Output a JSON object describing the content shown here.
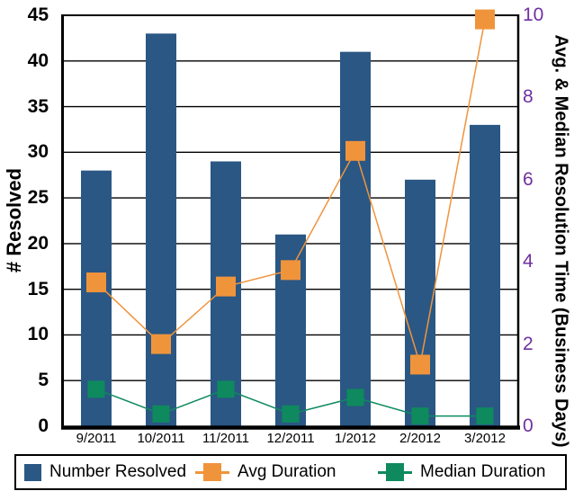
{
  "chart_data": {
    "type": "bar",
    "subtype": "combo-bar-line-dual-axis",
    "categories": [
      "9/2011",
      "10/2011",
      "11/2011",
      "12/2011",
      "1/2012",
      "2/2012",
      "3/2012"
    ],
    "series": [
      {
        "name": "Number Resolved",
        "type": "bar",
        "axis": "left",
        "color": "#2A5784",
        "values": [
          28,
          43,
          29,
          21,
          41,
          27,
          33
        ]
      },
      {
        "name": "Avg Duration",
        "type": "line",
        "axis": "right",
        "color": "#F0943C",
        "marker": "square",
        "values": [
          3.5,
          2.0,
          3.4,
          3.8,
          6.7,
          1.5,
          9.9
        ]
      },
      {
        "name": "Median Duration",
        "type": "line",
        "axis": "right",
        "color": "#0E8A5E",
        "marker": "square",
        "values": [
          0.9,
          0.3,
          0.9,
          0.3,
          0.7,
          0.25,
          0.25
        ]
      }
    ],
    "left_axis": {
      "title": "# Resolved",
      "min": 0,
      "max": 45,
      "tick_step": 5,
      "tick_labels": [
        "0",
        "5",
        "10",
        "15",
        "20",
        "25",
        "30",
        "35",
        "40",
        "45"
      ],
      "tick_color": "#000000"
    },
    "right_axis": {
      "title": "Avg. & Median Resolution Time (Business Days)",
      "min": 0,
      "max": 10,
      "tick_step": 2,
      "tick_labels": [
        "0",
        "2",
        "4",
        "6",
        "8",
        "10"
      ],
      "tick_color": "#7030A0"
    },
    "grid": true,
    "gridline_color": "#000000",
    "background_color": "#FFFFFF",
    "legend_position": "bottom"
  }
}
